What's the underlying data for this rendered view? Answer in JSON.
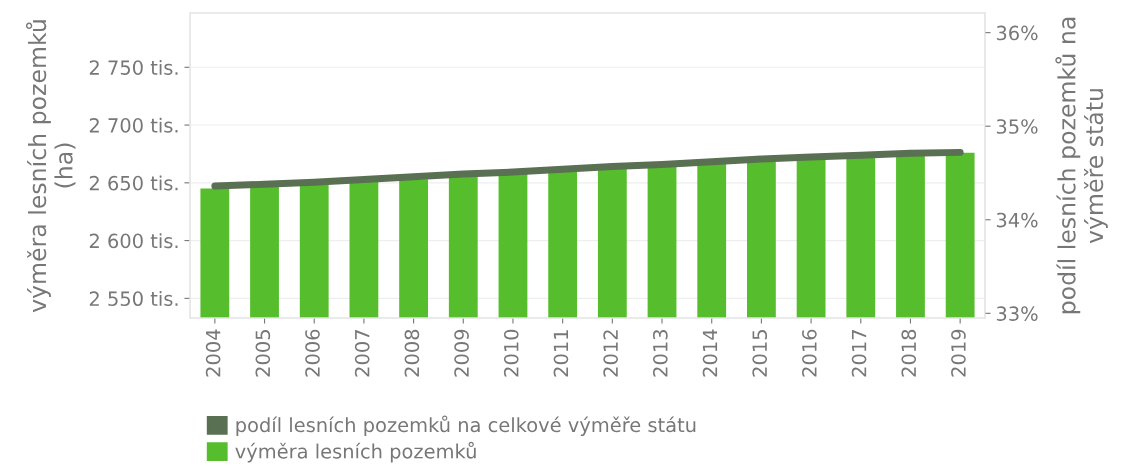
{
  "chart_data": {
    "type": "bar",
    "categories": [
      "2004",
      "2005",
      "2006",
      "2007",
      "2008",
      "2009",
      "2010",
      "2011",
      "2012",
      "2013",
      "2014",
      "2015",
      "2016",
      "2017",
      "2018",
      "2019"
    ],
    "series": [
      {
        "name": "podíl lesních pozemků na celkové výměře státu",
        "type": "line",
        "axis": "y2",
        "color": "#5a7052",
        "values": [
          34.36,
          34.38,
          34.4,
          34.43,
          34.46,
          34.49,
          34.51,
          34.54,
          34.57,
          34.59,
          34.62,
          34.65,
          34.67,
          34.69,
          34.71,
          34.72
        ]
      },
      {
        "name": "výměra lesních pozemků",
        "color": "#56be2c",
        "values": [
          2645,
          2647,
          2650,
          2651,
          2653,
          2655,
          2658,
          2660,
          2662,
          2664,
          2667,
          2668,
          2670,
          2672,
          2674,
          2676
        ]
      }
    ],
    "ylabel": "výměra lesních pozemků\n(ha)",
    "y2label": "podíl lesních pozemků na\nvýměře státu",
    "ylim": [
      2533,
      2797
    ],
    "yticks": [
      {
        "value": 2550,
        "label": "2 550 tis."
      },
      {
        "value": 2600,
        "label": "2 600 tis."
      },
      {
        "value": 2650,
        "label": "2 650 tis."
      },
      {
        "value": 2700,
        "label": "2 700 tis."
      },
      {
        "value": 2750,
        "label": "2 750 tis."
      }
    ],
    "y2lim": [
      32.95,
      36.21
    ],
    "y2ticks": [
      {
        "value": 33,
        "label": "33%"
      },
      {
        "value": 34,
        "label": "34%"
      },
      {
        "value": 35,
        "label": "35%"
      },
      {
        "value": 36,
        "label": "36%"
      }
    ],
    "grid": "y",
    "legend": "bottom left"
  }
}
